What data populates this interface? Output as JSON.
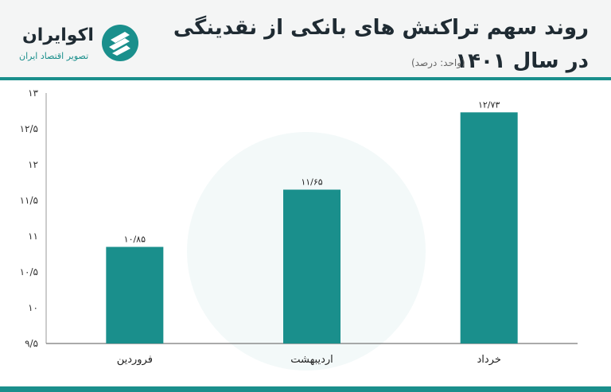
{
  "header": {
    "title_line1": "روند سهم تراکنش های بانکی از نقدینگی",
    "title_line2": "در سال ۱۴۰۱",
    "subtitle": "(واحد: درصد)",
    "brand_name": "اکوایران",
    "brand_tagline": "تصویر اقتصاد ایران"
  },
  "colors": {
    "bar": "#1a8f8c",
    "accent": "#1a8f8c",
    "title": "#1f2b33"
  },
  "chart_data": {
    "type": "bar",
    "categories": [
      "فروردین",
      "اردیبهشت",
      "خرداد"
    ],
    "values": [
      10.85,
      11.65,
      12.73
    ],
    "value_labels": [
      "۱۰/۸۵",
      "۱۱/۶۵",
      "۱۲/۷۳"
    ],
    "ylim": [
      9.5,
      13
    ],
    "yticks": [
      9.5,
      10,
      10.5,
      11,
      11.5,
      12,
      12.5,
      13
    ],
    "ytick_labels": [
      "۹/۵",
      "۱۰",
      "۱۰/۵",
      "۱۱",
      "۱۱/۵",
      "۱۲",
      "۱۲/۵",
      "۱۳"
    ],
    "grid": false
  }
}
